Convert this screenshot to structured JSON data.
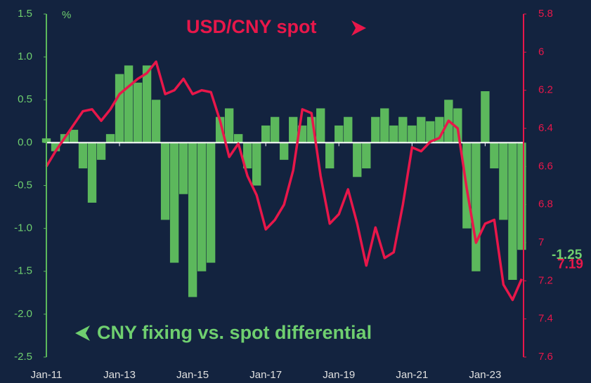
{
  "chart_data": {
    "type": "bar-line",
    "annotations": [
      "USD/CNY spot",
      "CNY fixing vs. spot differential"
    ],
    "ylabel": "%",
    "x": [
      2011,
      2011.25,
      2011.5,
      2011.75,
      2012,
      2012.25,
      2012.5,
      2012.75,
      2013,
      2013.25,
      2013.5,
      2013.75,
      2014,
      2014.25,
      2014.5,
      2014.75,
      2015,
      2015.25,
      2015.5,
      2015.75,
      2016,
      2016.25,
      2016.5,
      2016.75,
      2017,
      2017.25,
      2017.5,
      2017.75,
      2018,
      2018.25,
      2018.5,
      2018.75,
      2019,
      2019.25,
      2019.5,
      2019.75,
      2020,
      2020.25,
      2020.5,
      2020.75,
      2021,
      2021.25,
      2021.5,
      2021.75,
      2022,
      2022.25,
      2022.5,
      2022.75,
      2023,
      2023.25,
      2023.5,
      2023.75,
      2024
    ],
    "series": [
      {
        "name": "CNY fixing vs. spot differential",
        "type": "bar",
        "axis": "y",
        "color": "#5cb85c",
        "values": [
          0.05,
          -0.1,
          0.1,
          0.15,
          -0.3,
          -0.7,
          -0.2,
          0.1,
          0.8,
          0.9,
          0.7,
          0.9,
          0.5,
          -0.9,
          -1.4,
          -0.6,
          -1.8,
          -1.5,
          -1.4,
          0.3,
          0.4,
          0.1,
          -0.3,
          -0.5,
          0.2,
          0.3,
          -0.2,
          0.3,
          0.2,
          0.3,
          0.4,
          -0.3,
          0.2,
          0.3,
          -0.4,
          -0.3,
          0.3,
          0.4,
          0.2,
          0.3,
          0.2,
          0.3,
          0.25,
          0.3,
          0.5,
          0.4,
          -1.0,
          -1.5,
          0.6,
          -0.3,
          -0.9,
          -1.6,
          -1.25
        ]
      },
      {
        "name": "USD/CNY spot",
        "type": "line",
        "axis": "y2",
        "color": "#e8174a",
        "values": [
          6.6,
          6.52,
          6.45,
          6.38,
          6.31,
          6.3,
          6.36,
          6.3,
          6.22,
          6.18,
          6.14,
          6.11,
          6.05,
          6.22,
          6.2,
          6.14,
          6.22,
          6.2,
          6.21,
          6.36,
          6.55,
          6.48,
          6.65,
          6.75,
          6.93,
          6.88,
          6.8,
          6.62,
          6.3,
          6.32,
          6.65,
          6.9,
          6.85,
          6.72,
          6.9,
          7.12,
          6.92,
          7.08,
          7.05,
          6.8,
          6.5,
          6.52,
          6.47,
          6.45,
          6.36,
          6.4,
          6.72,
          7.0,
          6.9,
          6.88,
          7.22,
          7.3,
          7.19
        ]
      }
    ],
    "xlim": [
      2011,
      2024.05
    ],
    "xticks": [
      {
        "value": 2011,
        "label": "Jan-11"
      },
      {
        "value": 2013,
        "label": "Jan-13"
      },
      {
        "value": 2015,
        "label": "Jan-15"
      },
      {
        "value": 2017,
        "label": "Jan-17"
      },
      {
        "value": 2019,
        "label": "Jan-19"
      },
      {
        "value": 2021,
        "label": "Jan-21"
      },
      {
        "value": 2023,
        "label": "Jan-23"
      }
    ],
    "ylim": [
      -2.5,
      1.5
    ],
    "yticks": [
      -2.5,
      {
        "value": -2,
        "label": "-2.0"
      },
      -1.5,
      {
        "value": -1,
        "label": "-1.0"
      },
      -0.5,
      {
        "value": 0,
        "label": "0.0"
      },
      0.5,
      {
        "value": 1,
        "label": "1.0"
      },
      1.5
    ],
    "y2lim": [
      7.6,
      5.8
    ],
    "y2ticks": [
      7.6,
      7.4,
      7.2,
      7,
      6.8,
      6.6,
      6.4,
      6.2,
      6,
      5.8
    ]
  }
}
